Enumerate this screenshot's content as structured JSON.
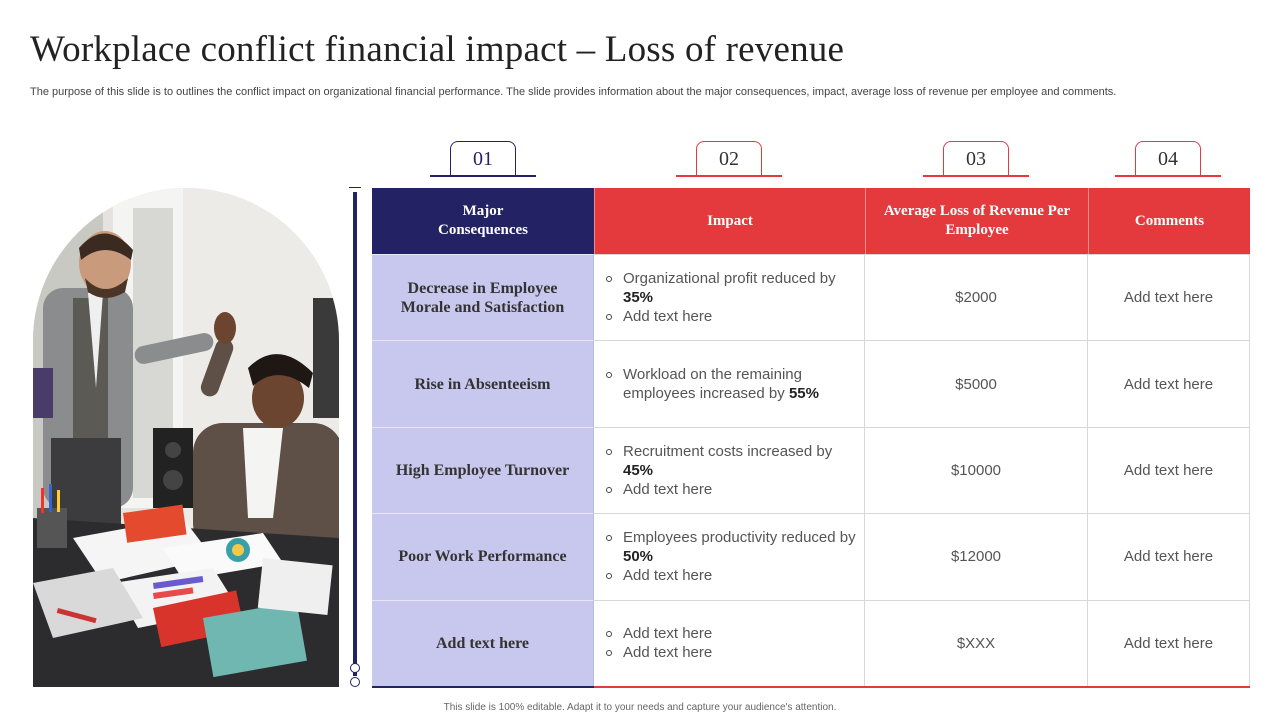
{
  "title": "Workplace conflict financial impact – Loss of revenue",
  "subtitle": "The purpose of this slide is to outlines the conflict impact on organizational financial performance. The slide provides information about the major consequences, impact, average loss of revenue per employee and comments.",
  "numbers": [
    "01",
    "02",
    "03",
    "04"
  ],
  "headers": [
    "Major Consequences",
    "Impact",
    "Average Loss of Revenue Per Employee",
    "Comments"
  ],
  "rows": [
    {
      "consequence": "Decrease in Employee Morale and Satisfaction",
      "impact": [
        {
          "text": "Organizational profit reduced by ",
          "bold": "35%"
        },
        {
          "text": "Add text here",
          "bold": ""
        }
      ],
      "loss": "$2000",
      "comment": "Add text here"
    },
    {
      "consequence": "Rise in Absenteeism",
      "impact": [
        {
          "text": "Workload on the remaining employees increased by ",
          "bold": "55%"
        }
      ],
      "loss": "$5000",
      "comment": "Add text here"
    },
    {
      "consequence": "High Employee Turnover",
      "impact": [
        {
          "text": "Recruitment costs increased by ",
          "bold": "45%"
        },
        {
          "text": "Add text here",
          "bold": ""
        }
      ],
      "loss": "$10000",
      "comment": "Add text here"
    },
    {
      "consequence": "Poor Work Performance",
      "impact": [
        {
          "text": "Employees productivity reduced by ",
          "bold": "50%"
        },
        {
          "text": "Add text here",
          "bold": ""
        }
      ],
      "loss": "$12000",
      "comment": "Add text here"
    },
    {
      "consequence": "Add text here",
      "impact": [
        {
          "text": "Add text here",
          "bold": ""
        },
        {
          "text": "Add text here",
          "bold": ""
        }
      ],
      "loss": "$XXX",
      "comment": "Add text here"
    }
  ],
  "footer": "This slide is 100% editable. Adapt it to your needs and capture your audience's attention.",
  "colors": {
    "navy": "#232264",
    "red": "#e53a3d",
    "lavender": "#c8c8ee"
  }
}
